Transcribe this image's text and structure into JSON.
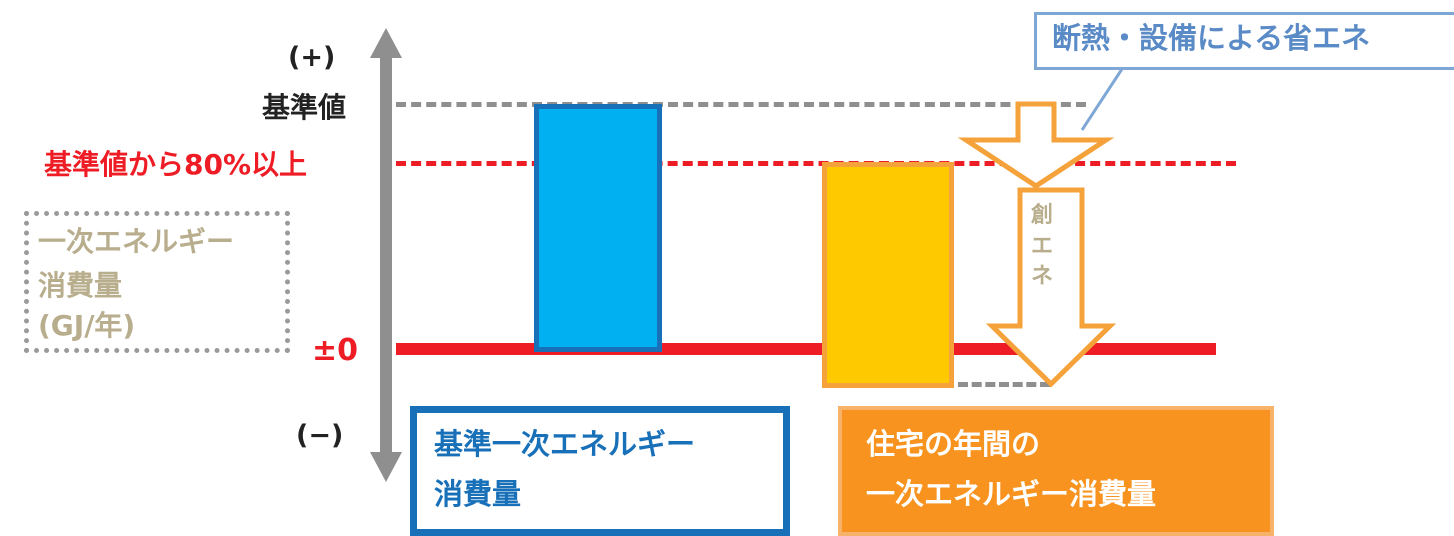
{
  "axis": {
    "plus_label": "(+)",
    "minus_label": "(−)",
    "title_lines": [
      "一次エネルギー",
      "消費量",
      "(GJ/年)"
    ]
  },
  "levels": {
    "base": "基準値",
    "eighty": "基準値から80%以上",
    "zero": "±0"
  },
  "bars": {
    "standard": "基準一次エネルギー消費量",
    "house": "住宅の年間の一次エネルギー消費量"
  },
  "categories": {
    "standard_lines": [
      "基準一次エネルギー",
      "消費量"
    ],
    "house_lines": [
      "住宅の年間の",
      "一次エネルギー消費量"
    ]
  },
  "annotations": {
    "savings": "断熱・設備による省エネ",
    "creation_chars": [
      "創",
      "エ",
      "ネ"
    ]
  },
  "colors": {
    "standard_fill": "#00b0f0",
    "standard_border": "#1870b8",
    "house_fill": "#ffc900",
    "house_border": "#f5a23a",
    "category_house_fill": "#f7931e",
    "red_line": "#ee1c24",
    "gray_line": "#8f8f8f",
    "callout_border": "#7fa7d6",
    "callout_text": "#5b8bc6",
    "muted_text": "#b8ae8e"
  }
}
